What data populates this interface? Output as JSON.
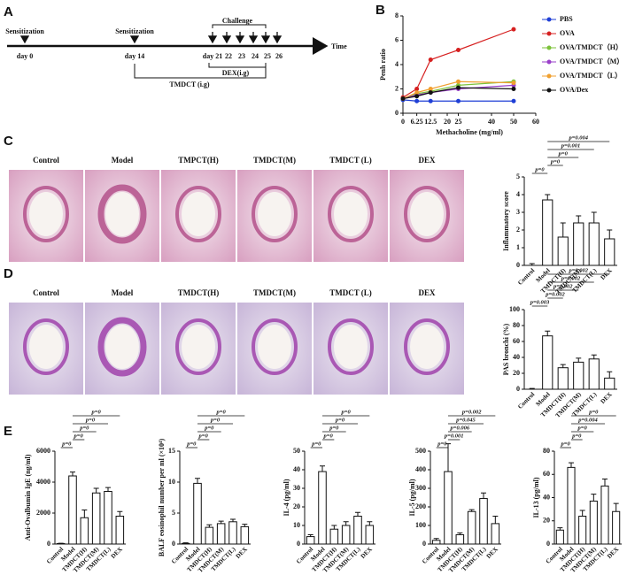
{
  "panel_labels": [
    "A",
    "B",
    "C",
    "D",
    "E"
  ],
  "timeline": {
    "events": [
      "Sensitization",
      "Sensitization",
      "Challenge"
    ],
    "days": [
      "day 0",
      "day 14",
      "day 21",
      "22",
      "23",
      "24",
      "25",
      "26"
    ],
    "axis_label": "Time",
    "treatments": [
      "DEX(i.g)",
      "TMDCT  (i.g)"
    ]
  },
  "histology": [
    {
      "labels": [
        "Control",
        "Model",
        "TMPCT(H)",
        "TMDCT(M)",
        "TMDCT (L)",
        "DEX"
      ]
    },
    {
      "labels": [
        "Control",
        "Model",
        "TMDCT(H)",
        "TMDCT(M)",
        "TMDCT (L)",
        "DEX"
      ]
    }
  ],
  "chart_data": [
    {
      "type": "line",
      "x_label": "Methacholine (mg/ml)",
      "y_label": "Penh ratio",
      "xlim": [
        0,
        60
      ],
      "xticks": [
        0,
        6.25,
        12.5,
        20,
        25,
        40,
        50,
        60
      ],
      "ylim": [
        0,
        8
      ],
      "yticks": [
        0,
        2,
        4,
        6,
        8
      ],
      "x": [
        0,
        6.25,
        12.5,
        25,
        50
      ],
      "series": [
        {
          "name": "PBS",
          "color": "#1f3fd6",
          "values": [
            1.1,
            1.0,
            1.0,
            1.0,
            1.0
          ]
        },
        {
          "name": "OVA",
          "color": "#d62020",
          "values": [
            1.3,
            2.0,
            4.4,
            5.2,
            6.9
          ]
        },
        {
          "name": "OVA/TMDCT（H）",
          "color": "#7cc23a",
          "values": [
            1.2,
            1.6,
            1.8,
            2.3,
            2.6
          ]
        },
        {
          "name": "OVA/TMDCT（M）",
          "color": "#9a3fc9",
          "values": [
            1.2,
            1.5,
            1.7,
            2.0,
            2.3
          ]
        },
        {
          "name": "OVA/TMDCT（L）",
          "color": "#f0a030",
          "values": [
            1.2,
            1.7,
            2.0,
            2.6,
            2.5
          ]
        },
        {
          "name": "OVA/Dex",
          "color": "#111111",
          "values": [
            1.2,
            1.4,
            1.7,
            2.1,
            2.0
          ]
        }
      ]
    },
    {
      "type": "bar",
      "y_label": "Inflammatory score",
      "categories": [
        "Control",
        "Model",
        "TMDCT(H)",
        "TMDCT(M)",
        "TMDCT(L)",
        "DEX"
      ],
      "values": [
        0,
        3.7,
        1.6,
        2.4,
        2.4,
        1.5
      ],
      "errors": [
        0.1,
        0.3,
        0.8,
        0.4,
        0.6,
        0.5
      ],
      "ylim": [
        0,
        5
      ],
      "yticks": [
        0,
        1,
        2,
        3,
        4,
        5
      ],
      "brackets": [
        {
          "label": "p=0",
          "from": "Control",
          "to": "Model"
        },
        {
          "label": "p=0",
          "from": "Model",
          "to": "TMDCT(H)"
        },
        {
          "label": "p=0",
          "from": "Model",
          "to": "TMDCT(M)"
        },
        {
          "label": "p=0.001",
          "from": "Model",
          "to": "TMDCT(L)"
        },
        {
          "label": "p=0.004",
          "from": "Model",
          "to": "DEX"
        }
      ]
    },
    {
      "type": "bar",
      "y_label": "PAS bronchi (%)",
      "categories": [
        "Control",
        "Model",
        "TMDCT(H)",
        "TMDCT(M)",
        "TMDCT(L)",
        "DEX"
      ],
      "values": [
        0,
        67,
        27,
        34,
        38,
        14
      ],
      "errors": [
        1,
        6,
        4,
        5,
        5,
        8
      ],
      "ylim": [
        0,
        100
      ],
      "yticks": [
        0,
        20,
        40,
        60,
        80,
        100
      ],
      "brackets": [
        {
          "label": "p=0.003",
          "from": "Control",
          "to": "Model"
        },
        {
          "label": "p=0.002",
          "from": "Model",
          "to": "TMDCT(H)"
        },
        {
          "label": "p=0.002",
          "from": "Model",
          "to": "TMDCT(M)"
        },
        {
          "label": "p=0.002",
          "from": "Model",
          "to": "TMDCT(L)"
        },
        {
          "label": "p=0.002",
          "from": "Model",
          "to": "DEX"
        }
      ]
    },
    {
      "type": "bar",
      "y_label": "Anti-Ovalbumin IgE (ng/ml)",
      "categories": [
        "Control",
        "Model",
        "TMDCT(H)",
        "TMDCT(M)",
        "TMDCT(L)",
        "DEX"
      ],
      "values": [
        30,
        4400,
        1700,
        3300,
        3400,
        1800
      ],
      "errors": [
        20,
        250,
        500,
        300,
        250,
        300
      ],
      "ylim": [
        0,
        6000
      ],
      "yticks": [
        0,
        2000,
        4000,
        6000
      ],
      "brackets": [
        {
          "label": "p=0",
          "from": "Control",
          "to": "Model"
        },
        {
          "label": "p=0",
          "from": "Model",
          "to": "TMDCT(H)"
        },
        {
          "label": "p=0",
          "from": "Model",
          "to": "TMDCT(M)"
        },
        {
          "label": "p=0",
          "from": "Model",
          "to": "TMDCT(L)"
        },
        {
          "label": "p=0",
          "from": "Model",
          "to": "DEX"
        }
      ]
    },
    {
      "type": "bar",
      "y_label": "BALF eosinophil number per ml (×10⁴)",
      "categories": [
        "Control",
        "Model",
        "TMDCT(H)",
        "TMDCT(M)",
        "TMDCT(L)",
        "DEX"
      ],
      "values": [
        0.1,
        9.8,
        2.7,
        3.3,
        3.6,
        2.8
      ],
      "errors": [
        0.1,
        0.8,
        0.4,
        0.4,
        0.4,
        0.4
      ],
      "ylim": [
        0,
        15
      ],
      "yticks": [
        0,
        5,
        10,
        15
      ],
      "brackets": [
        {
          "label": "p=0",
          "from": "Control",
          "to": "Model"
        },
        {
          "label": "p=0",
          "from": "Model",
          "to": "TMDCT(H)"
        },
        {
          "label": "p=0",
          "from": "Model",
          "to": "TMDCT(M)"
        },
        {
          "label": "p=0",
          "from": "Model",
          "to": "TMDCT(L)"
        },
        {
          "label": "p=0",
          "from": "Model",
          "to": "DEX"
        }
      ]
    },
    {
      "type": "bar",
      "y_label": "IL-4 (pg/ml)",
      "categories": [
        "Control",
        "Model",
        "TMDCT(H)",
        "TMDCT(M)",
        "TMDCT(L)",
        "DEX"
      ],
      "values": [
        4,
        39,
        8,
        10,
        15,
        10
      ],
      "errors": [
        1,
        3,
        2,
        2,
        2,
        2
      ],
      "ylim": [
        0,
        50
      ],
      "yticks": [
        0,
        10,
        20,
        30,
        40,
        50
      ],
      "brackets": [
        {
          "label": "p=0",
          "from": "Control",
          "to": "Model"
        },
        {
          "label": "p=0",
          "from": "Model",
          "to": "TMDCT(H)"
        },
        {
          "label": "p=0",
          "from": "Model",
          "to": "TMDCT(M)"
        },
        {
          "label": "p=0",
          "from": "Model",
          "to": "TMDCT(L)"
        },
        {
          "label": "p=0",
          "from": "Model",
          "to": "DEX"
        }
      ]
    },
    {
      "type": "bar",
      "y_label": "IL-5 (pg/ml)",
      "categories": [
        "Control",
        "Model",
        "TMDCT(H)",
        "TMDCT(M)",
        "TMDCT(L)",
        "DEX"
      ],
      "values": [
        20,
        390,
        50,
        175,
        245,
        110
      ],
      "errors": [
        10,
        150,
        10,
        10,
        30,
        40
      ],
      "ylim": [
        0,
        500
      ],
      "yticks": [
        0,
        100,
        200,
        300,
        400,
        500
      ],
      "brackets": [
        {
          "label": "p=0",
          "from": "Control",
          "to": "Model"
        },
        {
          "label": "p=0.001",
          "from": "Model",
          "to": "TMDCT(H)"
        },
        {
          "label": "p=0.006",
          "from": "Model",
          "to": "TMDCT(M)"
        },
        {
          "label": "p=0.045",
          "from": "Model",
          "to": "TMDCT(L)"
        },
        {
          "label": "p=0.002",
          "from": "Model",
          "to": "DEX"
        }
      ]
    },
    {
      "type": "bar",
      "y_label": "IL-13 (pg/ml)",
      "categories": [
        "Control",
        "Model",
        "TMDCT(H)",
        "TMDCT(M)",
        "TMDCT(L)",
        "DEX"
      ],
      "values": [
        12,
        66,
        24,
        37,
        50,
        28
      ],
      "errors": [
        2,
        4,
        5,
        6,
        6,
        7
      ],
      "ylim": [
        0,
        80
      ],
      "yticks": [
        0,
        20,
        40,
        60,
        80
      ],
      "brackets": [
        {
          "label": "p=0",
          "from": "Control",
          "to": "Model"
        },
        {
          "label": "p=0",
          "from": "Model",
          "to": "TMDCT(H)"
        },
        {
          "label": "p=0",
          "from": "Model",
          "to": "TMDCT(M)"
        },
        {
          "label": "p=0.004",
          "from": "Model",
          "to": "TMDCT(L)"
        },
        {
          "label": "p=0",
          "from": "Model",
          "to": "DEX"
        }
      ]
    }
  ]
}
